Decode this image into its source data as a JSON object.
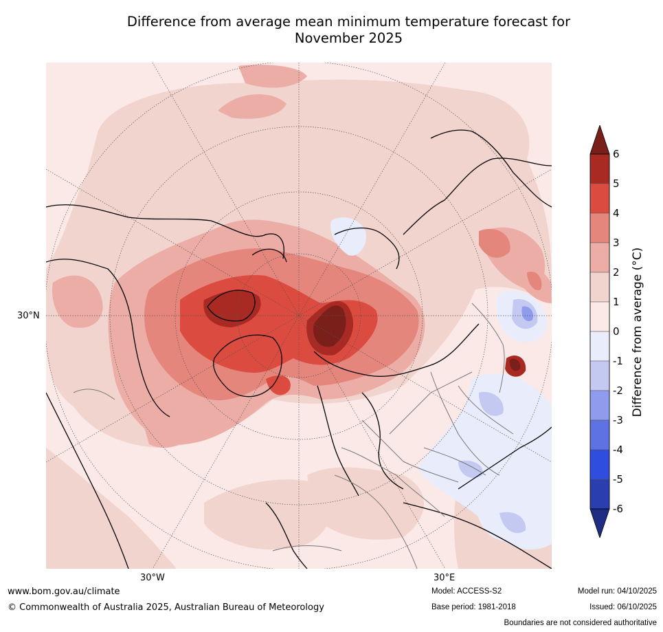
{
  "title": {
    "line1": "Difference from average mean minimum temperature forecast for",
    "line2": "November 2025"
  },
  "map": {
    "projection_labels": {
      "lon_left": "30°W",
      "lon_right": "30°E",
      "lat": "30°N"
    },
    "background_color": "#fbe9e7"
  },
  "colorbar": {
    "label": "Difference from average ($^\\circ$C)",
    "label_display": "Difference from average (°C)",
    "ticks": [
      "6",
      "5",
      "4",
      "3",
      "2",
      "1",
      "0",
      "-1",
      "-2",
      "-3",
      "-4",
      "-5",
      "-6"
    ],
    "levels": [
      {
        "range": "> 6",
        "color": "#7a1f1a"
      },
      {
        "range": "5 to 6",
        "color": "#a92a23"
      },
      {
        "range": "4 to 5",
        "color": "#db4b3f"
      },
      {
        "range": "3 to 4",
        "color": "#e5867c"
      },
      {
        "range": "2 to 3",
        "color": "#ebada6"
      },
      {
        "range": "1 to 2",
        "color": "#f2d4cf"
      },
      {
        "range": "0 to 1",
        "color": "#fbe9e7"
      },
      {
        "range": "-1 to 0",
        "color": "#e8ecfb"
      },
      {
        "range": "-2 to -1",
        "color": "#c3c9f1"
      },
      {
        "range": "-3 to -2",
        "color": "#8f9bec"
      },
      {
        "range": "-4 to -3",
        "color": "#5f72e2"
      },
      {
        "range": "-5 to -4",
        "color": "#2f4ee0"
      },
      {
        "range": "-6 to -5",
        "color": "#2a3eb0"
      },
      {
        "range": "< -6",
        "color": "#1f2e82"
      }
    ]
  },
  "footer": {
    "url": "www.bom.gov.au/climate",
    "copyright": "© Commonwealth of Australia 2025, Australian Bureau of Meteorology",
    "model": "Model: ACCESS-S2",
    "base_period": "Base period: 1981-2018",
    "model_run": "Model run: 04/10/2025",
    "issued": "Issued: 06/10/2025",
    "disclaimer": "Boundaries are not considered authoritative"
  }
}
